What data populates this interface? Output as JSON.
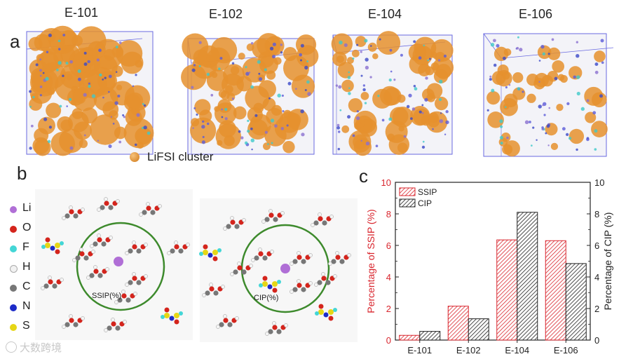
{
  "panel_a": {
    "label": "a",
    "boxes": [
      {
        "title": "E-101",
        "density": 1.0
      },
      {
        "title": "E-102",
        "density": 0.75
      },
      {
        "title": "E-104",
        "density": 0.6
      },
      {
        "title": "E-106",
        "density": 0.3
      }
    ],
    "legend": "LiFSI cluster",
    "cluster_color": "#e5902e",
    "box_color": "#6a6ae0"
  },
  "panel_b": {
    "label": "b",
    "elements": [
      {
        "symbol": "Li",
        "color": "#b06fd6"
      },
      {
        "symbol": "O",
        "color": "#d4241c"
      },
      {
        "symbol": "F",
        "color": "#44d6d6"
      },
      {
        "symbol": "H",
        "color": "#eeeeee"
      },
      {
        "symbol": "C",
        "color": "#777777"
      },
      {
        "symbol": "N",
        "color": "#1c2bc8"
      },
      {
        "symbol": "S",
        "color": "#e6d616"
      }
    ],
    "left_label": "SSIP(%)",
    "right_label": "CIP(%)",
    "circle_color": "#3d8a2c"
  },
  "panel_c": {
    "label": "c"
  },
  "watermark": "大数跨境",
  "chart_data": {
    "type": "bar",
    "categories": [
      "E-101",
      "E-102",
      "E-104",
      "E-106"
    ],
    "series": [
      {
        "name": "SSIP",
        "values": [
          0.3,
          2.15,
          6.35,
          6.3
        ],
        "color": "#d9262e",
        "axis": "left"
      },
      {
        "name": "CIP",
        "values": [
          0.55,
          1.35,
          8.1,
          4.85
        ],
        "color": "#222222",
        "axis": "right"
      }
    ],
    "ylabel_left": "Percentage of SSIP (%)",
    "ylabel_right": "Percentage of CIP (%)",
    "ylim": [
      0,
      10
    ],
    "yticks": [
      0,
      2,
      4,
      6,
      8,
      10
    ],
    "legend_position": "top-left",
    "grid": false
  }
}
